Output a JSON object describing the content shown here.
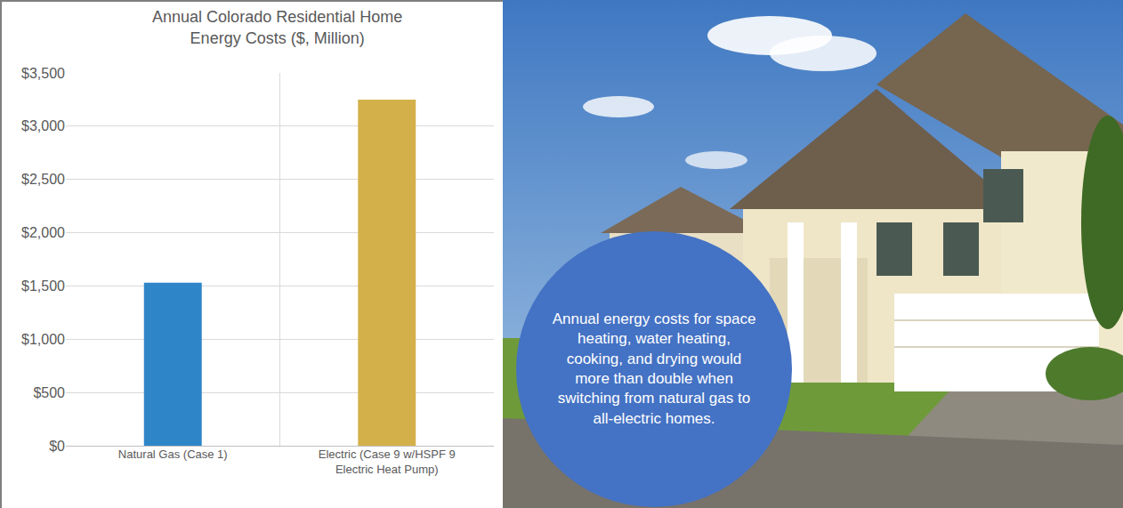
{
  "chart_data": {
    "type": "bar",
    "title": "Annual Colorado Residential Home Energy Costs ($, Million)",
    "categories": [
      "Natural Gas (Case 1)",
      "Electric (Case 9 w/HSPF 9 Electric Heat Pump)"
    ],
    "values": [
      1530,
      3250
    ],
    "colors": [
      "#2e86c9",
      "#d4b04a"
    ],
    "ylim": [
      0,
      3500
    ],
    "yticks": [
      {
        "value": 0,
        "label": "$0"
      },
      {
        "value": 500,
        "label": "$500"
      },
      {
        "value": 1000,
        "label": "$1,000"
      },
      {
        "value": 1500,
        "label": "$1,500"
      },
      {
        "value": 2000,
        "label": "$2,000"
      },
      {
        "value": 2500,
        "label": "$2,500"
      },
      {
        "value": 3000,
        "label": "$3,000"
      },
      {
        "value": 3500,
        "label": "$3,500"
      }
    ],
    "grid": true,
    "annotation": "Annual energy costs for space heating, water heating, cooking, and drying would more than double when switching from natural gas to all-electric homes."
  }
}
